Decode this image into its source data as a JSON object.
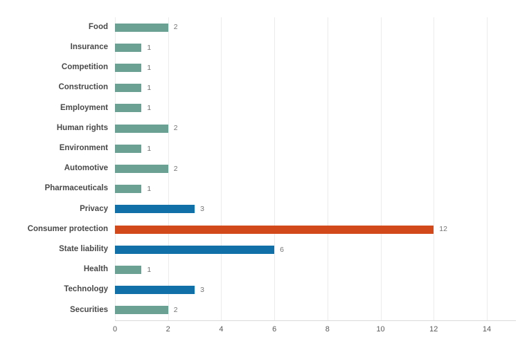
{
  "colors": {
    "teal": "#6BA192",
    "blue": "#1170A8",
    "orange": "#D2491C",
    "gridline": "#EBEBEB",
    "axis_line": "#D9D9D9",
    "category_label": "#494949",
    "value_label": "#757575",
    "tick_label": "#595959",
    "background": "#FFFFFF"
  },
  "chart_data": {
    "type": "bar",
    "orientation": "horizontal",
    "title": "",
    "xlabel": "",
    "ylabel": "",
    "xlim": [
      0,
      14
    ],
    "x_ticks": [
      0,
      2,
      4,
      6,
      8,
      10,
      12,
      14
    ],
    "grid": "vertical-on",
    "legend": "none",
    "value_labels": "shown-right-of-bar",
    "categories": [
      "Food",
      "Insurance",
      "Competition",
      "Construction",
      "Employment",
      "Human rights",
      "Environment",
      "Automotive",
      "Pharmaceuticals",
      "Privacy",
      "Consumer protection",
      "State liability",
      "Health",
      "Technology",
      "Securities"
    ],
    "values": [
      2,
      1,
      1,
      1,
      1,
      2,
      1,
      2,
      1,
      3,
      12,
      6,
      1,
      3,
      2
    ],
    "bars": [
      {
        "label": "Food",
        "value": 2,
        "color": "teal"
      },
      {
        "label": "Insurance",
        "value": 1,
        "color": "teal"
      },
      {
        "label": "Competition",
        "value": 1,
        "color": "teal"
      },
      {
        "label": "Construction",
        "value": 1,
        "color": "teal"
      },
      {
        "label": "Employment",
        "value": 1,
        "color": "teal"
      },
      {
        "label": "Human rights",
        "value": 2,
        "color": "teal"
      },
      {
        "label": "Environment",
        "value": 1,
        "color": "teal"
      },
      {
        "label": "Automotive",
        "value": 2,
        "color": "teal"
      },
      {
        "label": "Pharmaceuticals",
        "value": 1,
        "color": "teal"
      },
      {
        "label": "Privacy",
        "value": 3,
        "color": "blue"
      },
      {
        "label": "Consumer protection",
        "value": 12,
        "color": "orange"
      },
      {
        "label": "State liability",
        "value": 6,
        "color": "blue"
      },
      {
        "label": "Health",
        "value": 1,
        "color": "teal"
      },
      {
        "label": "Technology",
        "value": 3,
        "color": "blue"
      },
      {
        "label": "Securities",
        "value": 2,
        "color": "teal"
      }
    ]
  }
}
